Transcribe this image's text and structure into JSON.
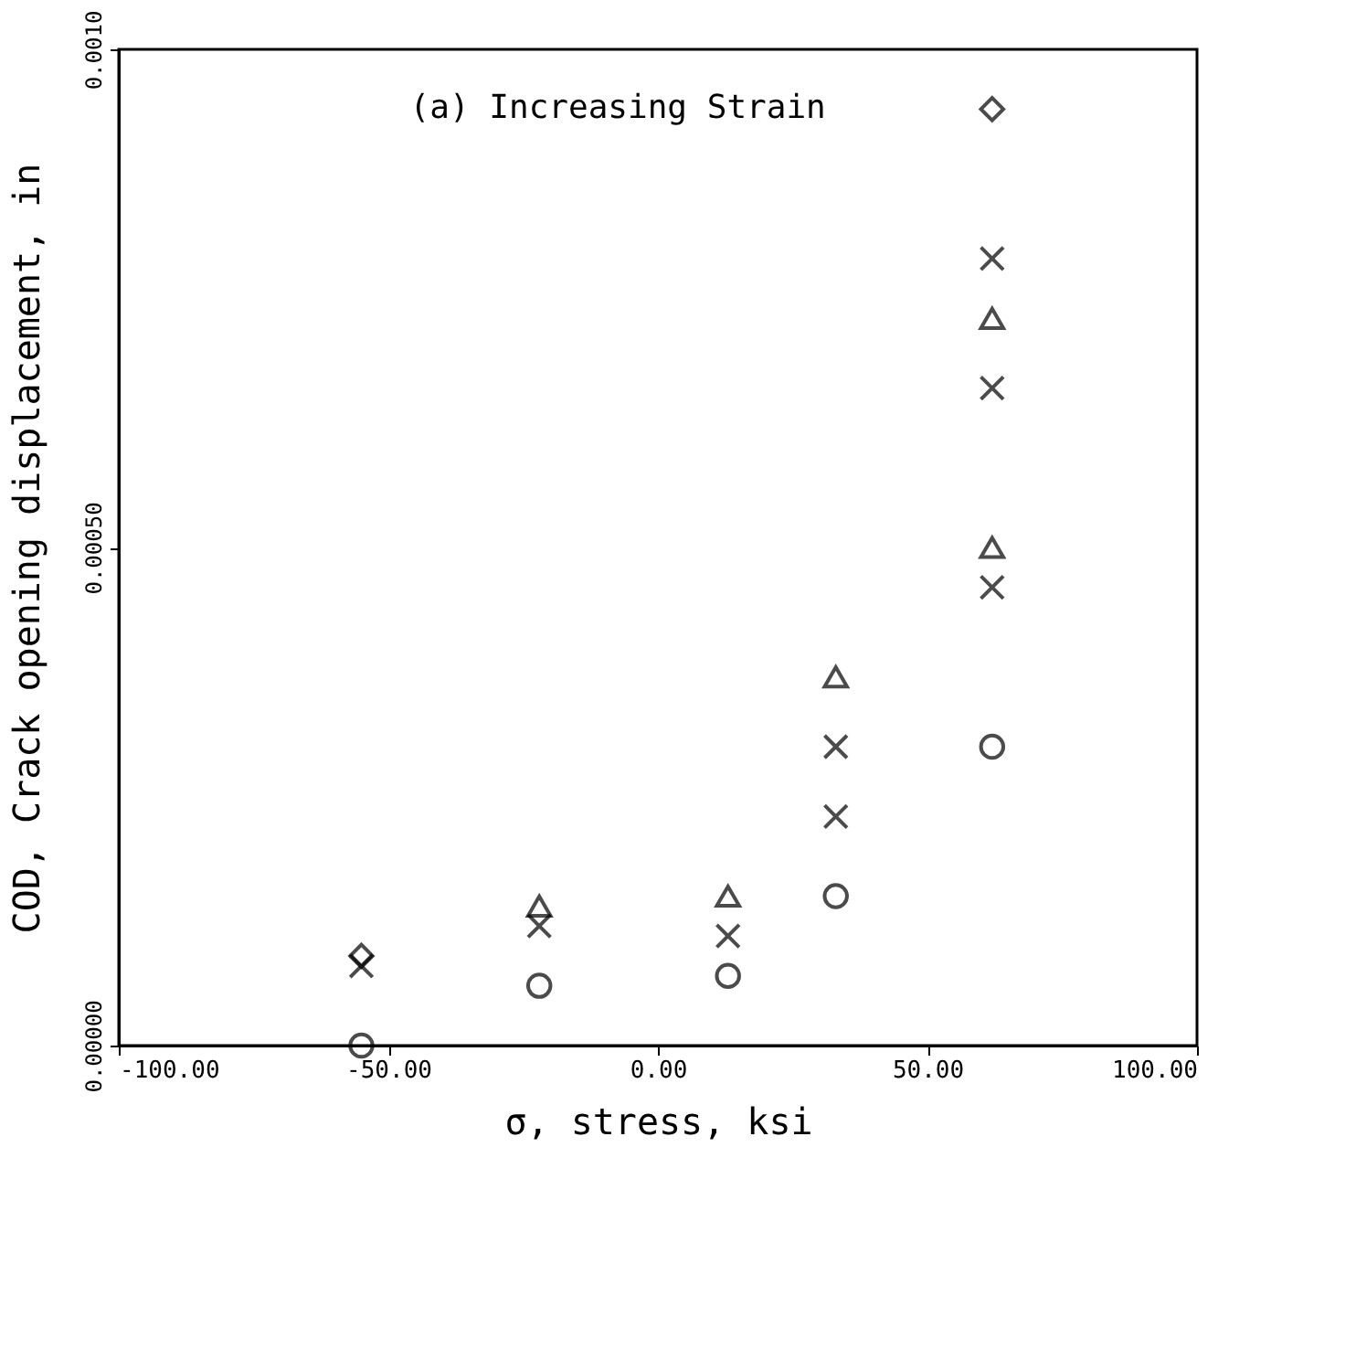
{
  "chart_data": {
    "type": "scatter",
    "xlabel": "σ, stress, ksi",
    "ylabel": "COD, Crack opening displacement, in",
    "annotations": [
      "(a)  Increasing Strain"
    ],
    "xlim": [
      -100,
      100
    ],
    "xticks": [
      {
        "value": -100,
        "label": "-100.00"
      },
      {
        "value": -50,
        "label": "-50.00"
      },
      {
        "value": 0,
        "label": "0.00"
      },
      {
        "value": 50,
        "label": "50.00"
      },
      {
        "value": 100,
        "label": "100.00"
      }
    ],
    "ylim": [
      0,
      0.001
    ],
    "yticks": [
      {
        "value": 0,
        "label": "0.00000"
      },
      {
        "value": 0.0005,
        "label": "0.00050"
      },
      {
        "value": 0.001,
        "label": "0.0010"
      }
    ],
    "grid": false,
    "series": [
      {
        "color": "#000000",
        "marker": "circle",
        "x": [
          -55,
          -22,
          13,
          33,
          62
        ],
        "values": [
          0.0,
          6e-05,
          7e-05,
          0.00015,
          0.0003
        ]
      },
      {
        "color": "#000000",
        "marker": "triangle",
        "x": [
          -22,
          13,
          33,
          62,
          62
        ],
        "values": [
          0.00014,
          0.00015,
          0.00037,
          0.00073,
          0.0005
        ]
      },
      {
        "color": "#000000",
        "marker": "cross",
        "x": [
          -55,
          -22,
          13,
          33,
          33,
          62,
          62,
          62
        ],
        "values": [
          8e-05,
          0.00012,
          0.00011,
          0.0003,
          0.00023,
          0.00079,
          0.00066,
          0.00046
        ]
      },
      {
        "color": "#000000",
        "marker": "diamond",
        "x": [
          -55,
          62
        ],
        "values": [
          9e-05,
          0.00094
        ]
      }
    ]
  }
}
